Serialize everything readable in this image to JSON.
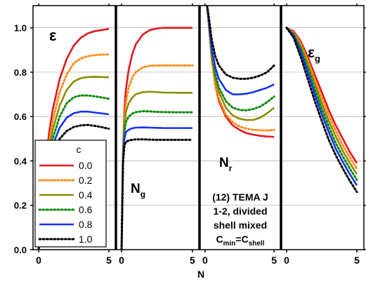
{
  "chart_data": {
    "type": "line",
    "x_axis": {
      "label": "N",
      "range": [
        -0.4,
        5.5
      ],
      "ticks": [
        0,
        5
      ],
      "tick_labels": [
        "0",
        "5"
      ]
    },
    "y_axis": {
      "range": [
        0.0,
        1.1
      ],
      "ticks": [
        0.0,
        0.2,
        0.4,
        0.6,
        0.8,
        1.0
      ],
      "tick_labels": [
        "0.0",
        "0.2",
        "0.4",
        "0.6",
        "0.8",
        "1.0"
      ],
      "grid": true
    },
    "legend": {
      "title": "c",
      "placement": "lower-left of first panel",
      "entries": [
        {
          "label": "0.0",
          "color": "#e8141b",
          "dash": "solid"
        },
        {
          "label": "0.2",
          "color": "#ff8c1a",
          "dash": "dotted"
        },
        {
          "label": "0.4",
          "color": "#8c8c00",
          "dash": "solid"
        },
        {
          "label": "0.6",
          "color": "#0a8a0a",
          "dash": "dotted"
        },
        {
          "label": "0.8",
          "color": "#1530ff",
          "dash": "solid"
        },
        {
          "label": "1.0",
          "color": "#000000",
          "dash": "dotted"
        }
      ]
    },
    "annotation": {
      "lines": [
        "(12) TEMA J",
        "1-2, divided",
        "shell mixed"
      ],
      "formula": {
        "main": "C",
        "sub1": "min",
        "eq": "=C",
        "sub2": "shell"
      }
    },
    "panels": [
      {
        "label": "ε",
        "label_sub": "",
        "series": [
          {
            "name": "0.0",
            "x": [
              0,
              0.25,
              0.5,
              0.75,
              1,
              1.5,
              2,
              2.5,
              3,
              3.5,
              4,
              4.5,
              5
            ],
            "y": [
              0.0,
              0.22,
              0.39,
              0.53,
              0.63,
              0.77,
              0.86,
              0.92,
              0.955,
              0.975,
              0.985,
              0.99,
              0.995
            ]
          },
          {
            "name": "0.2",
            "x": [
              0,
              0.25,
              0.5,
              0.75,
              1,
              1.5,
              2,
              2.5,
              3,
              3.5,
              4,
              4.5,
              5
            ],
            "y": [
              0.0,
              0.21,
              0.37,
              0.49,
              0.58,
              0.71,
              0.79,
              0.84,
              0.862,
              0.872,
              0.877,
              0.879,
              0.88
            ]
          },
          {
            "name": "0.4",
            "x": [
              0,
              0.25,
              0.5,
              0.75,
              1,
              1.5,
              2,
              2.5,
              3,
              3.5,
              4,
              4.5,
              5
            ],
            "y": [
              0.0,
              0.2,
              0.35,
              0.46,
              0.54,
              0.65,
              0.72,
              0.758,
              0.773,
              0.778,
              0.779,
              0.778,
              0.777
            ]
          },
          {
            "name": "0.6",
            "x": [
              0,
              0.25,
              0.5,
              0.75,
              1,
              1.5,
              2,
              2.5,
              3,
              3.5,
              4,
              4.5,
              5
            ],
            "y": [
              0.0,
              0.19,
              0.33,
              0.43,
              0.5,
              0.6,
              0.66,
              0.687,
              0.695,
              0.695,
              0.691,
              0.686,
              0.68
            ]
          },
          {
            "name": "0.8",
            "x": [
              0,
              0.25,
              0.5,
              0.75,
              1,
              1.5,
              2,
              2.5,
              3,
              3.5,
              4,
              4.5,
              5
            ],
            "y": [
              0.0,
              0.185,
              0.32,
              0.41,
              0.47,
              0.55,
              0.595,
              0.615,
              0.622,
              0.622,
              0.618,
              0.614,
              0.61
            ]
          },
          {
            "name": "1.0",
            "x": [
              0,
              0.25,
              0.5,
              0.75,
              1,
              1.5,
              2,
              2.5,
              3,
              3.5,
              4,
              4.5,
              5
            ],
            "y": [
              0.0,
              0.18,
              0.31,
              0.39,
              0.44,
              0.5,
              0.535,
              0.553,
              0.56,
              0.562,
              0.558,
              0.552,
              0.545
            ]
          }
        ]
      },
      {
        "label": "N",
        "label_sub": "g",
        "series": [
          {
            "name": "0.0",
            "x": [
              0,
              0.1,
              0.2,
              0.3,
              0.5,
              0.75,
              1,
              1.5,
              2,
              2.5,
              3,
              4,
              5
            ],
            "y": [
              0.0,
              0.45,
              0.63,
              0.72,
              0.81,
              0.88,
              0.925,
              0.97,
              0.99,
              0.997,
              1.0,
              1.0,
              1.0
            ]
          },
          {
            "name": "0.2",
            "x": [
              0,
              0.1,
              0.2,
              0.3,
              0.5,
              0.75,
              1,
              1.5,
              2,
              2.5,
              3,
              4,
              5
            ],
            "y": [
              0.0,
              0.43,
              0.59,
              0.66,
              0.73,
              0.775,
              0.8,
              0.822,
              0.829,
              0.83,
              0.83,
              0.83,
              0.83
            ]
          },
          {
            "name": "0.4",
            "x": [
              0,
              0.1,
              0.2,
              0.3,
              0.5,
              0.75,
              1,
              1.5,
              2,
              2.5,
              3,
              4,
              5
            ],
            "y": [
              0.0,
              0.42,
              0.56,
              0.62,
              0.66,
              0.685,
              0.7,
              0.71,
              0.712,
              0.71,
              0.708,
              0.707,
              0.707
            ]
          },
          {
            "name": "0.6",
            "x": [
              0,
              0.1,
              0.2,
              0.3,
              0.5,
              0.75,
              1,
              1.5,
              2,
              2.5,
              3,
              4,
              5
            ],
            "y": [
              0.0,
              0.41,
              0.53,
              0.575,
              0.6,
              0.613,
              0.62,
              0.624,
              0.623,
              0.621,
              0.62,
              0.619,
              0.619
            ]
          },
          {
            "name": "0.8",
            "x": [
              0,
              0.1,
              0.2,
              0.3,
              0.5,
              0.75,
              1,
              1.5,
              2,
              2.5,
              3,
              4,
              5
            ],
            "y": [
              0.0,
              0.4,
              0.5,
              0.53,
              0.54,
              0.547,
              0.55,
              0.551,
              0.55,
              0.549,
              0.548,
              0.548,
              0.548
            ]
          },
          {
            "name": "1.0",
            "x": [
              0,
              0.1,
              0.2,
              0.3,
              0.5,
              0.75,
              1,
              1.5,
              2,
              2.5,
              3,
              4,
              5
            ],
            "y": [
              0.0,
              0.39,
              0.47,
              0.485,
              0.492,
              0.495,
              0.497,
              0.497,
              0.496,
              0.495,
              0.495,
              0.495,
              0.495
            ]
          }
        ]
      },
      {
        "label": "N",
        "label_sub": "r",
        "series": [
          {
            "name": "0.0",
            "x": [
              0.15,
              0.25,
              0.5,
              0.75,
              1,
              1.5,
              2,
              2.5,
              3,
              3.5,
              4,
              4.5,
              5
            ],
            "y": [
              1.1,
              1.03,
              0.85,
              0.74,
              0.67,
              0.6,
              0.56,
              0.54,
              0.525,
              0.518,
              0.513,
              0.51,
              0.508
            ]
          },
          {
            "name": "0.2",
            "x": [
              0.15,
              0.25,
              0.5,
              0.75,
              1,
              1.5,
              2,
              2.5,
              3,
              3.5,
              4,
              4.5,
              5
            ],
            "y": [
              1.1,
              1.03,
              0.85,
              0.745,
              0.68,
              0.61,
              0.575,
              0.555,
              0.545,
              0.54,
              0.538,
              0.537,
              0.54
            ]
          },
          {
            "name": "0.4",
            "x": [
              0.15,
              0.25,
              0.5,
              0.75,
              1,
              1.5,
              2,
              2.5,
              3,
              3.5,
              4,
              4.5,
              5
            ],
            "y": [
              1.1,
              1.04,
              0.87,
              0.77,
              0.71,
              0.64,
              0.605,
              0.59,
              0.584,
              0.585,
              0.595,
              0.615,
              0.64
            ]
          },
          {
            "name": "0.6",
            "x": [
              0.15,
              0.25,
              0.5,
              0.75,
              1,
              1.5,
              2,
              2.5,
              3,
              3.5,
              4,
              4.5,
              5
            ],
            "y": [
              1.1,
              1.04,
              0.88,
              0.79,
              0.73,
              0.67,
              0.64,
              0.63,
              0.628,
              0.634,
              0.645,
              0.665,
              0.69
            ]
          },
          {
            "name": "0.8",
            "x": [
              0.15,
              0.25,
              0.5,
              0.75,
              1,
              1.5,
              2,
              2.5,
              3,
              3.5,
              4,
              4.5,
              5
            ],
            "y": [
              1.1,
              1.05,
              0.9,
              0.82,
              0.77,
              0.72,
              0.7,
              0.7,
              0.703,
              0.71,
              0.72,
              0.73,
              0.745
            ]
          },
          {
            "name": "1.0",
            "x": [
              0.15,
              0.25,
              0.5,
              0.75,
              1,
              1.5,
              2,
              2.5,
              3,
              3.5,
              4,
              4.5,
              5
            ],
            "y": [
              1.1,
              1.06,
              0.94,
              0.87,
              0.83,
              0.79,
              0.775,
              0.77,
              0.77,
              0.775,
              0.785,
              0.8,
              0.83
            ]
          }
        ]
      },
      {
        "label": "ε",
        "label_sub": "g",
        "series": [
          {
            "name": "0.0",
            "x": [
              0,
              0.5,
              1,
              1.5,
              2,
              2.5,
              3,
              3.5,
              4,
              4.5,
              5
            ],
            "y": [
              1.0,
              0.985,
              0.94,
              0.87,
              0.79,
              0.71,
              0.63,
              0.56,
              0.5,
              0.44,
              0.39
            ]
          },
          {
            "name": "0.2",
            "x": [
              0,
              0.5,
              1,
              1.5,
              2,
              2.5,
              3,
              3.5,
              4,
              4.5,
              5
            ],
            "y": [
              1.0,
              0.98,
              0.93,
              0.855,
              0.77,
              0.685,
              0.605,
              0.535,
              0.47,
              0.415,
              0.365
            ]
          },
          {
            "name": "0.4",
            "x": [
              0,
              0.5,
              1,
              1.5,
              2,
              2.5,
              3,
              3.5,
              4,
              4.5,
              5
            ],
            "y": [
              1.0,
              0.975,
              0.92,
              0.84,
              0.75,
              0.66,
              0.58,
              0.51,
              0.445,
              0.39,
              0.34
            ]
          },
          {
            "name": "0.6",
            "x": [
              0,
              0.5,
              1,
              1.5,
              2,
              2.5,
              3,
              3.5,
              4,
              4.5,
              5
            ],
            "y": [
              1.0,
              0.97,
              0.905,
              0.82,
              0.725,
              0.635,
              0.555,
              0.48,
              0.42,
              0.365,
              0.315
            ]
          },
          {
            "name": "0.8",
            "x": [
              0,
              0.5,
              1,
              1.5,
              2,
              2.5,
              3,
              3.5,
              4,
              4.5,
              5
            ],
            "y": [
              1.0,
              0.965,
              0.89,
              0.8,
              0.7,
              0.61,
              0.53,
              0.455,
              0.395,
              0.34,
              0.29
            ]
          },
          {
            "name": "1.0",
            "x": [
              0,
              0.5,
              1,
              1.5,
              2,
              2.5,
              3,
              3.5,
              4,
              4.5,
              5
            ],
            "y": [
              1.0,
              0.955,
              0.87,
              0.77,
              0.67,
              0.58,
              0.495,
              0.425,
              0.365,
              0.31,
              0.26
            ]
          }
        ]
      }
    ]
  }
}
